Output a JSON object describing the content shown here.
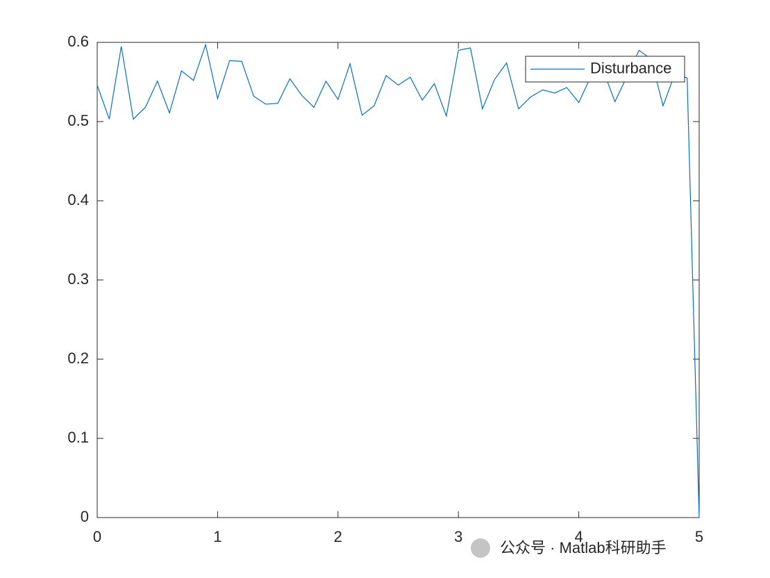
{
  "chart_data": {
    "type": "line",
    "x": [
      0,
      0.1,
      0.2,
      0.3,
      0.4,
      0.5,
      0.6,
      0.7,
      0.8,
      0.9,
      1.0,
      1.1,
      1.2,
      1.3,
      1.4,
      1.5,
      1.6,
      1.7,
      1.8,
      1.9,
      2.0,
      2.1,
      2.2,
      2.3,
      2.4,
      2.5,
      2.6,
      2.7,
      2.8,
      2.9,
      3.0,
      3.1,
      3.2,
      3.3,
      3.4,
      3.5,
      3.6,
      3.7,
      3.8,
      3.9,
      4.0,
      4.1,
      4.2,
      4.3,
      4.4,
      4.5,
      4.6,
      4.7,
      4.8,
      4.9,
      5.0
    ],
    "series": [
      {
        "name": "Disturbance",
        "color": "#0072bd",
        "values": [
          0.546,
          0.503,
          0.595,
          0.503,
          0.518,
          0.551,
          0.511,
          0.564,
          0.552,
          0.597,
          0.529,
          0.577,
          0.576,
          0.532,
          0.522,
          0.523,
          0.554,
          0.533,
          0.518,
          0.551,
          0.528,
          0.573,
          0.508,
          0.52,
          0.558,
          0.546,
          0.556,
          0.527,
          0.548,
          0.507,
          0.59,
          0.593,
          0.516,
          0.553,
          0.574,
          0.516,
          0.531,
          0.54,
          0.536,
          0.543,
          0.524,
          0.557,
          0.566,
          0.525,
          0.557,
          0.59,
          0.579,
          0.52,
          0.561,
          0.555,
          0
        ]
      }
    ],
    "xlim": [
      0,
      5
    ],
    "xticks": [
      0,
      1,
      2,
      3,
      4,
      5
    ],
    "ylim": [
      0,
      0.6
    ],
    "yticks": [
      0,
      0.1,
      0.2,
      0.3,
      0.4,
      0.5,
      0.6
    ],
    "legend": "northeast",
    "watermark": "公众号 · Matlab科研助手"
  }
}
